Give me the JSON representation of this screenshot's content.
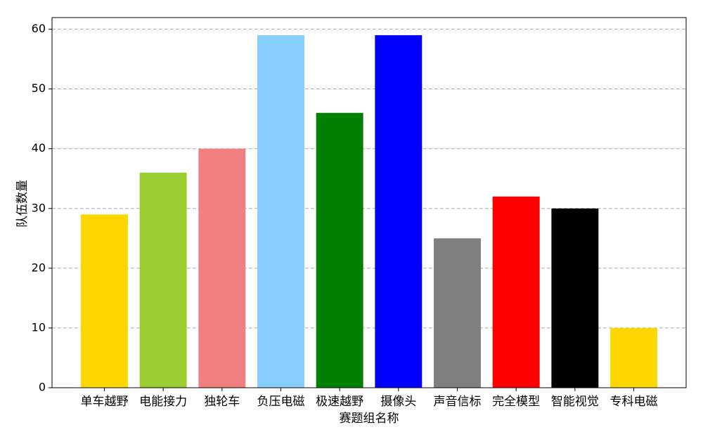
{
  "chart_data": {
    "type": "bar",
    "xlabel": "赛题组名称",
    "ylabel": "队伍数量",
    "categories": [
      "单车越野",
      "电能接力",
      "独轮车",
      "负压电磁",
      "极速越野",
      "摄像头",
      "声音信标",
      "完全模型",
      "智能视觉",
      "专科电磁"
    ],
    "values": [
      29,
      36,
      40,
      59,
      46,
      59,
      25,
      32,
      30,
      10
    ],
    "colors": [
      "#ffd700",
      "#9acd32",
      "#f08080",
      "#87cefa",
      "#008000",
      "#0000ff",
      "#808080",
      "#ff0000",
      "#000000",
      "#ffd700"
    ],
    "ylim": [
      0,
      61.95
    ],
    "yticks": [
      0,
      10,
      20,
      30,
      40,
      50,
      60
    ],
    "grid": true
  }
}
